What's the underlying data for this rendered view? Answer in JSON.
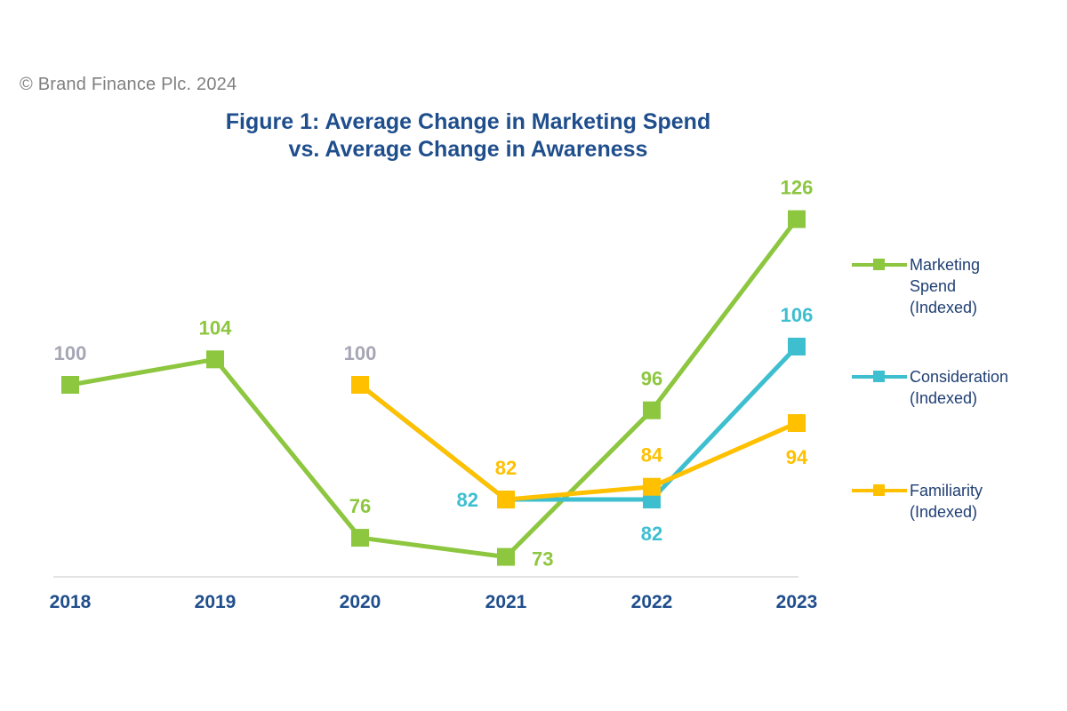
{
  "copyright": "© Brand Finance Plc. 2024",
  "title_lines": [
    "Figure 1: Average Change in Marketing Spend",
    "vs. Average Change in Awareness"
  ],
  "colors": {
    "marketing": "#8dc63f",
    "consideration": "#3ebfcf",
    "familiarity": "#ffc000",
    "base_label": "#a6a6b4",
    "axis_text": "#1f4e8c",
    "axis_line": "#d9d9d9"
  },
  "legend": [
    {
      "key": "marketing",
      "lines": [
        "Marketing",
        "Spend",
        "(Indexed)"
      ]
    },
    {
      "key": "consideration",
      "lines": [
        "Consideration",
        "(Indexed)"
      ]
    },
    {
      "key": "familiarity",
      "lines": [
        "Familiarity",
        "(Indexed)"
      ]
    }
  ],
  "chart_data": {
    "type": "line",
    "title": "Figure 1: Average Change in Marketing Spend vs. Average Change in Awareness",
    "categories": [
      "2018",
      "2019",
      "2020",
      "2021",
      "2022",
      "2023"
    ],
    "series": [
      {
        "name": "Marketing Spend (Indexed)",
        "key": "marketing",
        "values": [
          100,
          104,
          76,
          73,
          96,
          126
        ]
      },
      {
        "name": "Consideration (Indexed)",
        "key": "consideration",
        "values": [
          null,
          null,
          100,
          82,
          82,
          106
        ]
      },
      {
        "name": "Familiarity (Indexed)",
        "key": "familiarity",
        "values": [
          null,
          null,
          100,
          82,
          84,
          94
        ]
      }
    ],
    "data_labels": [
      {
        "series": "marketing",
        "category": "2018",
        "text": "100",
        "color_key": "base_label",
        "side": "above"
      },
      {
        "series": "marketing",
        "category": "2019",
        "text": "104",
        "color_key": "marketing",
        "side": "above"
      },
      {
        "series": "marketing",
        "category": "2020",
        "text": "76",
        "color_key": "marketing",
        "side": "above"
      },
      {
        "series": "marketing",
        "category": "2021",
        "text": "73",
        "color_key": "marketing",
        "side": "right"
      },
      {
        "series": "marketing",
        "category": "2022",
        "text": "96",
        "color_key": "marketing",
        "side": "above"
      },
      {
        "series": "marketing",
        "category": "2023",
        "text": "126",
        "color_key": "marketing",
        "side": "above"
      },
      {
        "series": "consideration",
        "category": "2020",
        "text": "100",
        "color_key": "base_label",
        "side": "above"
      },
      {
        "series": "consideration",
        "category": "2021",
        "text": "82",
        "color_key": "consideration",
        "side": "left"
      },
      {
        "series": "consideration",
        "category": "2022",
        "text": "82",
        "color_key": "consideration",
        "side": "below"
      },
      {
        "series": "consideration",
        "category": "2023",
        "text": "106",
        "color_key": "consideration",
        "side": "above"
      },
      {
        "series": "familiarity",
        "category": "2021",
        "text": "82",
        "color_key": "familiarity",
        "side": "above"
      },
      {
        "series": "familiarity",
        "category": "2022",
        "text": "84",
        "color_key": "familiarity",
        "side": "above"
      },
      {
        "series": "familiarity",
        "category": "2023",
        "text": "94",
        "color_key": "familiarity",
        "side": "below"
      }
    ],
    "grid": false,
    "legend_position": "right",
    "ylim": [
      70,
      130
    ]
  }
}
